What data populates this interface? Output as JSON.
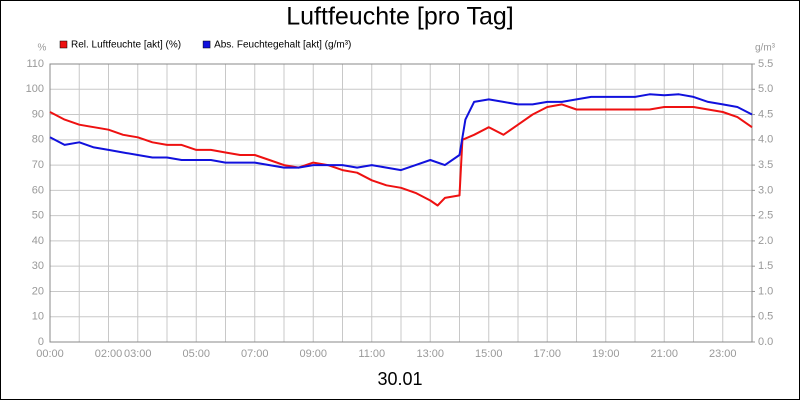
{
  "chart_data": {
    "type": "line",
    "title": "Luftfeuchte [pro Tag]",
    "xlabel": "30.01",
    "ylabel": "%",
    "y2label": "g/m³",
    "xlim": [
      0,
      24
    ],
    "xticks": [
      {
        "value": 0,
        "label": "00:00"
      },
      {
        "value": 2,
        "label": "02:00"
      },
      {
        "value": 3,
        "label": "03:00"
      },
      {
        "value": 5,
        "label": "05:00"
      },
      {
        "value": 7,
        "label": "07:00"
      },
      {
        "value": 9,
        "label": "09:00"
      },
      {
        "value": 11,
        "label": "11:00"
      },
      {
        "value": 13,
        "label": "13:00"
      },
      {
        "value": 15,
        "label": "15:00"
      },
      {
        "value": 17,
        "label": "17:00"
      },
      {
        "value": 19,
        "label": "19:00"
      },
      {
        "value": 21,
        "label": "21:00"
      },
      {
        "value": 23,
        "label": "23:00"
      }
    ],
    "xminorticks": [
      1,
      4,
      6,
      8,
      10,
      12,
      14,
      16,
      18,
      20,
      22,
      24
    ],
    "ylim": [
      0,
      110
    ],
    "yticks": [
      0,
      10,
      20,
      30,
      40,
      50,
      60,
      70,
      80,
      90,
      100,
      110
    ],
    "y2lim": [
      0,
      5.5
    ],
    "y2ticks": [
      {
        "value": 0,
        "label": "0.0"
      },
      0.5,
      {
        "value": 1,
        "label": "1.0"
      },
      1.5,
      {
        "value": 2,
        "label": "2.0"
      },
      2.5,
      {
        "value": 3,
        "label": "3.0"
      },
      3.5,
      {
        "value": 4,
        "label": "4.0"
      },
      4.5,
      {
        "value": 5,
        "label": "5.0"
      },
      5.5
    ],
    "grid": true,
    "legend": "top-left",
    "series": [
      {
        "name": "Rel. Luftfeuchte [akt] (%)",
        "color": "#ee1111",
        "x": [
          0,
          0.5,
          1,
          1.5,
          2,
          2.5,
          3,
          3.5,
          4,
          4.5,
          5,
          5.5,
          6,
          6.5,
          7,
          7.5,
          8,
          8.5,
          9,
          9.5,
          10,
          10.5,
          11,
          11.5,
          12,
          12.5,
          13,
          13.25,
          13.5,
          14,
          14.1,
          14.5,
          15,
          15.5,
          16,
          16.5,
          17,
          17.5,
          18,
          18.5,
          19,
          19.5,
          20,
          20.5,
          21,
          21.5,
          22,
          22.5,
          23,
          23.5,
          24
        ],
        "values": [
          91,
          88,
          86,
          85,
          84,
          82,
          81,
          79,
          78,
          78,
          76,
          76,
          75,
          74,
          74,
          72,
          70,
          69,
          71,
          70,
          68,
          67,
          64,
          62,
          61,
          59,
          56,
          54,
          57,
          58,
          80,
          82,
          85,
          82,
          86,
          90,
          93,
          94,
          92,
          92,
          92,
          92,
          92,
          92,
          93,
          93,
          93,
          92,
          91,
          89,
          85
        ]
      },
      {
        "name": "Abs. Feuchtegehalt [akt] (g/m³)",
        "color": "#1111dd",
        "axis": "y2",
        "x": [
          0,
          0.5,
          1,
          1.5,
          2,
          2.5,
          3,
          3.5,
          4,
          4.5,
          5,
          5.5,
          6,
          6.5,
          7,
          7.5,
          8,
          8.5,
          9,
          9.5,
          10,
          10.5,
          11,
          11.5,
          12,
          12.5,
          13,
          13.5,
          14,
          14.2,
          14.5,
          15,
          15.5,
          16,
          16.5,
          17,
          17.5,
          18,
          18.5,
          19,
          19.5,
          20,
          20.5,
          21,
          21.5,
          22,
          22.5,
          23,
          23.5,
          24
        ],
        "values": [
          4.05,
          3.9,
          3.95,
          3.85,
          3.8,
          3.75,
          3.7,
          3.65,
          3.65,
          3.6,
          3.6,
          3.6,
          3.55,
          3.55,
          3.55,
          3.5,
          3.45,
          3.45,
          3.5,
          3.5,
          3.5,
          3.45,
          3.5,
          3.45,
          3.4,
          3.5,
          3.6,
          3.5,
          3.7,
          4.4,
          4.75,
          4.8,
          4.75,
          4.7,
          4.7,
          4.75,
          4.75,
          4.8,
          4.85,
          4.85,
          4.85,
          4.85,
          4.9,
          4.88,
          4.9,
          4.85,
          4.75,
          4.7,
          4.65,
          4.5
        ]
      }
    ]
  }
}
